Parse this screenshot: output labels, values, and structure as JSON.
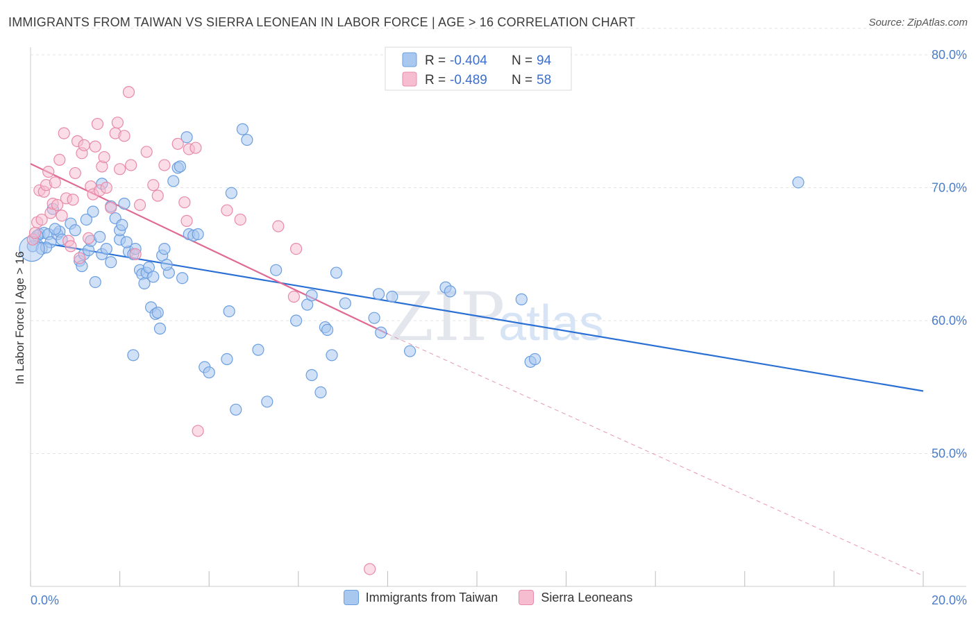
{
  "header": {
    "title": "IMMIGRANTS FROM TAIWAN VS SIERRA LEONEAN IN LABOR FORCE | AGE > 16 CORRELATION CHART",
    "source": "Source: ZipAtlas.com"
  },
  "watermark": {
    "zip": "ZIP",
    "atlas": "atlas"
  },
  "legend": {
    "rows": [
      {
        "r_label": "R = ",
        "r_value": "-0.404",
        "n_label": "N = ",
        "n_value": "94"
      },
      {
        "r_label": "R = ",
        "r_value": "-0.489",
        "n_label": "N = ",
        "n_value": "58"
      }
    ]
  },
  "bottom_legend": {
    "items": [
      {
        "label": "Immigrants from Taiwan"
      },
      {
        "label": "Sierra Leoneans"
      }
    ]
  },
  "chart_data": {
    "type": "scatter",
    "xlabel": "",
    "ylabel": "In Labor Force | Age > 16",
    "xlim": [
      0,
      20
    ],
    "ylim": [
      40,
      82
    ],
    "x_tick_labels": [
      "0.0%",
      "20.0%"
    ],
    "y_ticks": [
      50,
      60,
      70,
      80
    ],
    "y_tick_labels": [
      "50.0%",
      "60.0%",
      "70.0%",
      "80.0%"
    ],
    "grid": true,
    "legend_position": "top-center",
    "colors": {
      "taiwan_fill": "#a9c8f0",
      "taiwan_stroke": "#6a9ee0",
      "taiwan_line": "#2a6fd4",
      "sierra_fill": "#f6bcd0",
      "sierra_stroke": "#e88aa8",
      "sierra_line": "#e06a94"
    },
    "series": [
      {
        "name": "Immigrants from Taiwan",
        "trend": {
          "x": [
            0,
            20
          ],
          "y": [
            66.0,
            54.7
          ]
        },
        "points": [
          [
            0.05,
            65.6
          ],
          [
            0.1,
            66.2
          ],
          [
            0.2,
            66.5
          ],
          [
            0.25,
            65.4
          ],
          [
            0.3,
            66.6
          ],
          [
            0.4,
            66.5
          ],
          [
            0.45,
            65.9
          ],
          [
            0.5,
            68.4
          ],
          [
            0.6,
            66.5
          ],
          [
            0.65,
            66.7
          ],
          [
            0.7,
            66.1
          ],
          [
            0.9,
            67.3
          ],
          [
            1.0,
            66.8
          ],
          [
            1.1,
            64.5
          ],
          [
            1.15,
            64.1
          ],
          [
            1.2,
            65.0
          ],
          [
            1.3,
            65.3
          ],
          [
            1.35,
            66.0
          ],
          [
            1.4,
            68.2
          ],
          [
            1.45,
            62.9
          ],
          [
            1.6,
            65.0
          ],
          [
            1.6,
            70.3
          ],
          [
            1.7,
            65.4
          ],
          [
            1.8,
            64.4
          ],
          [
            1.8,
            68.6
          ],
          [
            1.9,
            67.7
          ],
          [
            2.0,
            66.1
          ],
          [
            2.0,
            66.8
          ],
          [
            2.05,
            67.2
          ],
          [
            2.1,
            68.8
          ],
          [
            2.2,
            65.2
          ],
          [
            2.3,
            65.0
          ],
          [
            2.3,
            57.4
          ],
          [
            2.35,
            65.4
          ],
          [
            2.45,
            63.8
          ],
          [
            2.5,
            63.5
          ],
          [
            2.55,
            62.8
          ],
          [
            2.6,
            63.6
          ],
          [
            2.65,
            64.0
          ],
          [
            2.7,
            61.0
          ],
          [
            2.8,
            60.5
          ],
          [
            2.85,
            60.6
          ],
          [
            2.9,
            59.4
          ],
          [
            2.95,
            64.9
          ],
          [
            3.0,
            65.4
          ],
          [
            3.1,
            63.6
          ],
          [
            3.2,
            70.5
          ],
          [
            3.3,
            71.5
          ],
          [
            3.35,
            71.6
          ],
          [
            3.4,
            63.2
          ],
          [
            3.5,
            73.8
          ],
          [
            3.55,
            66.5
          ],
          [
            3.65,
            66.4
          ],
          [
            3.75,
            66.5
          ],
          [
            3.9,
            56.5
          ],
          [
            4.0,
            56.1
          ],
          [
            4.4,
            57.1
          ],
          [
            4.45,
            60.7
          ],
          [
            4.5,
            69.6
          ],
          [
            4.6,
            53.3
          ],
          [
            4.75,
            74.4
          ],
          [
            4.85,
            73.6
          ],
          [
            5.1,
            57.8
          ],
          [
            5.3,
            53.9
          ],
          [
            5.5,
            63.8
          ],
          [
            5.95,
            60.0
          ],
          [
            6.2,
            61.2
          ],
          [
            6.3,
            55.9
          ],
          [
            6.3,
            61.9
          ],
          [
            6.5,
            54.6
          ],
          [
            6.6,
            59.5
          ],
          [
            6.65,
            59.3
          ],
          [
            6.75,
            57.4
          ],
          [
            6.85,
            63.6
          ],
          [
            7.05,
            61.3
          ],
          [
            7.7,
            60.2
          ],
          [
            7.8,
            62.0
          ],
          [
            7.85,
            59.1
          ],
          [
            8.1,
            61.8
          ],
          [
            8.5,
            57.7
          ],
          [
            9.3,
            62.5
          ],
          [
            9.4,
            62.2
          ],
          [
            11.0,
            61.6
          ],
          [
            11.2,
            56.9
          ],
          [
            11.3,
            57.1
          ],
          [
            17.2,
            70.4
          ],
          [
            0.15,
            66.4
          ],
          [
            0.35,
            65.5
          ],
          [
            1.25,
            67.6
          ],
          [
            2.15,
            65.9
          ],
          [
            3.05,
            64.2
          ],
          [
            0.55,
            66.9
          ],
          [
            1.55,
            66.3
          ],
          [
            2.75,
            63.3
          ]
        ]
      },
      {
        "name": "Sierra Leoneans",
        "trend": {
          "x": [
            0,
            8
          ],
          "y": [
            71.8,
            59.0
          ]
        },
        "trend_extension": {
          "x": [
            8,
            20
          ],
          "y": [
            59.0,
            40.8
          ]
        },
        "points": [
          [
            0.05,
            66.1
          ],
          [
            0.1,
            66.6
          ],
          [
            0.15,
            67.4
          ],
          [
            0.2,
            69.8
          ],
          [
            0.25,
            67.6
          ],
          [
            0.3,
            69.7
          ],
          [
            0.35,
            70.2
          ],
          [
            0.4,
            71.2
          ],
          [
            0.45,
            68.1
          ],
          [
            0.5,
            68.8
          ],
          [
            0.55,
            70.4
          ],
          [
            0.6,
            68.7
          ],
          [
            0.65,
            72.1
          ],
          [
            0.7,
            67.9
          ],
          [
            0.75,
            74.1
          ],
          [
            0.8,
            69.2
          ],
          [
            0.85,
            66.0
          ],
          [
            0.9,
            65.6
          ],
          [
            0.95,
            69.1
          ],
          [
            1.0,
            71.1
          ],
          [
            1.05,
            73.5
          ],
          [
            1.1,
            64.7
          ],
          [
            1.15,
            72.6
          ],
          [
            1.2,
            73.2
          ],
          [
            1.3,
            66.2
          ],
          [
            1.35,
            70.1
          ],
          [
            1.4,
            69.5
          ],
          [
            1.45,
            73.1
          ],
          [
            1.5,
            74.8
          ],
          [
            1.55,
            69.8
          ],
          [
            1.6,
            71.6
          ],
          [
            1.65,
            72.3
          ],
          [
            1.7,
            70.0
          ],
          [
            1.8,
            68.5
          ],
          [
            1.9,
            74.1
          ],
          [
            1.95,
            74.9
          ],
          [
            2.0,
            71.4
          ],
          [
            2.1,
            73.9
          ],
          [
            2.2,
            77.2
          ],
          [
            2.25,
            71.7
          ],
          [
            2.35,
            65.0
          ],
          [
            2.45,
            68.7
          ],
          [
            2.6,
            72.7
          ],
          [
            2.75,
            70.2
          ],
          [
            2.85,
            69.4
          ],
          [
            3.0,
            71.7
          ],
          [
            3.3,
            73.3
          ],
          [
            3.45,
            68.9
          ],
          [
            3.5,
            67.5
          ],
          [
            3.55,
            72.9
          ],
          [
            3.7,
            73.0
          ],
          [
            3.75,
            51.7
          ],
          [
            4.4,
            68.3
          ],
          [
            4.7,
            67.6
          ],
          [
            5.55,
            67.1
          ],
          [
            5.95,
            65.4
          ],
          [
            5.9,
            61.8
          ],
          [
            7.6,
            41.3
          ]
        ]
      }
    ]
  }
}
